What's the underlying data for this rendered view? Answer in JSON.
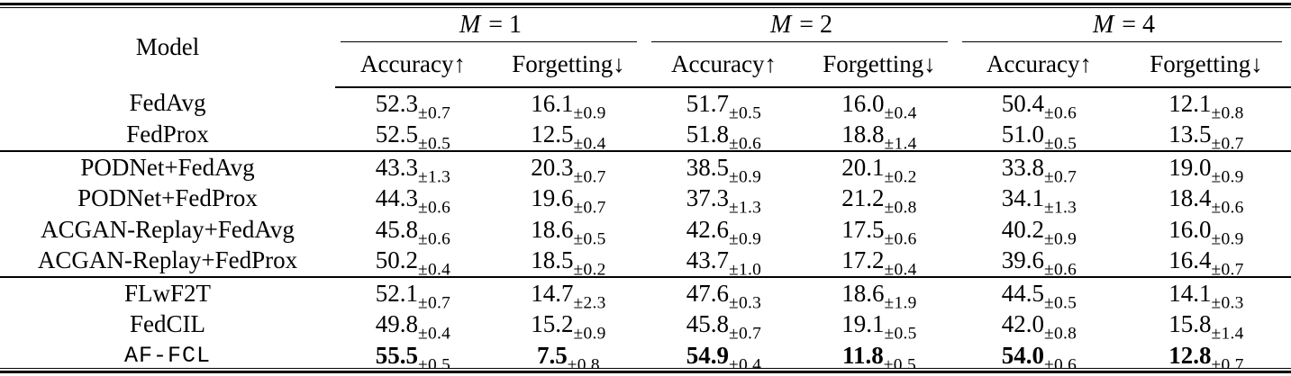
{
  "table": {
    "model_header": "Model",
    "groups": [
      {
        "var": "M",
        "eq": "= 1"
      },
      {
        "var": "M",
        "eq": "= 2"
      },
      {
        "var": "M",
        "eq": "= 4"
      }
    ],
    "metric_headers": {
      "accuracy": "Accuracy↑",
      "forgetting": "Forgetting↓"
    },
    "rows": [
      {
        "model": "FedAvg",
        "values": [
          {
            "v": "52.3",
            "e": "±0.7"
          },
          {
            "v": "16.1",
            "e": "±0.9"
          },
          {
            "v": "51.7",
            "e": "±0.5"
          },
          {
            "v": "16.0",
            "e": "±0.4"
          },
          {
            "v": "50.4",
            "e": "±0.6"
          },
          {
            "v": "12.1",
            "e": "±0.8"
          }
        ]
      },
      {
        "model": "FedProx",
        "values": [
          {
            "v": "52.5",
            "e": "±0.5"
          },
          {
            "v": "12.5",
            "e": "±0.4"
          },
          {
            "v": "51.8",
            "e": "±0.6"
          },
          {
            "v": "18.8",
            "e": "±1.4"
          },
          {
            "v": "51.0",
            "e": "±0.5"
          },
          {
            "v": "13.5",
            "e": "±0.7"
          }
        ]
      },
      {
        "model": "PODNet+FedAvg",
        "values": [
          {
            "v": "43.3",
            "e": "±1.3"
          },
          {
            "v": "20.3",
            "e": "±0.7"
          },
          {
            "v": "38.5",
            "e": "±0.9"
          },
          {
            "v": "20.1",
            "e": "±0.2"
          },
          {
            "v": "33.8",
            "e": "±0.7"
          },
          {
            "v": "19.0",
            "e": "±0.9"
          }
        ]
      },
      {
        "model": "PODNet+FedProx",
        "values": [
          {
            "v": "44.3",
            "e": "±0.6"
          },
          {
            "v": "19.6",
            "e": "±0.7"
          },
          {
            "v": "37.3",
            "e": "±1.3"
          },
          {
            "v": "21.2",
            "e": "±0.8"
          },
          {
            "v": "34.1",
            "e": "±1.3"
          },
          {
            "v": "18.4",
            "e": "±0.6"
          }
        ]
      },
      {
        "model": "ACGAN-Replay+FedAvg",
        "values": [
          {
            "v": "45.8",
            "e": "±0.6"
          },
          {
            "v": "18.6",
            "e": "±0.5"
          },
          {
            "v": "42.6",
            "e": "±0.9"
          },
          {
            "v": "17.5",
            "e": "±0.6"
          },
          {
            "v": "40.2",
            "e": "±0.9"
          },
          {
            "v": "16.0",
            "e": "±0.9"
          }
        ]
      },
      {
        "model": "ACGAN-Replay+FedProx",
        "values": [
          {
            "v": "50.2",
            "e": "±0.4"
          },
          {
            "v": "18.5",
            "e": "±0.2"
          },
          {
            "v": "43.7",
            "e": "±1.0"
          },
          {
            "v": "17.2",
            "e": "±0.4"
          },
          {
            "v": "39.6",
            "e": "±0.6"
          },
          {
            "v": "16.4",
            "e": "±0.7"
          }
        ]
      },
      {
        "model": "FLwF2T",
        "values": [
          {
            "v": "52.1",
            "e": "±0.7"
          },
          {
            "v": "14.7",
            "e": "±2.3"
          },
          {
            "v": "47.6",
            "e": "±0.3"
          },
          {
            "v": "18.6",
            "e": "±1.9"
          },
          {
            "v": "44.5",
            "e": "±0.5"
          },
          {
            "v": "14.1",
            "e": "±0.3"
          }
        ]
      },
      {
        "model": "FedCIL",
        "values": [
          {
            "v": "49.8",
            "e": "±0.4"
          },
          {
            "v": "15.2",
            "e": "±0.9"
          },
          {
            "v": "45.8",
            "e": "±0.7"
          },
          {
            "v": "19.1",
            "e": "±0.5"
          },
          {
            "v": "42.0",
            "e": "±0.8"
          },
          {
            "v": "15.8",
            "e": "±1.4"
          }
        ]
      },
      {
        "model": "AF-FCL",
        "values": [
          {
            "v": "55.5",
            "e": "±0.5"
          },
          {
            "v": "7.5",
            "e": "±0.8"
          },
          {
            "v": "54.9",
            "e": "±0.4"
          },
          {
            "v": "11.8",
            "e": "±0.5"
          },
          {
            "v": "54.0",
            "e": "±0.6"
          },
          {
            "v": "12.8",
            "e": "±0.7"
          }
        ]
      }
    ]
  }
}
